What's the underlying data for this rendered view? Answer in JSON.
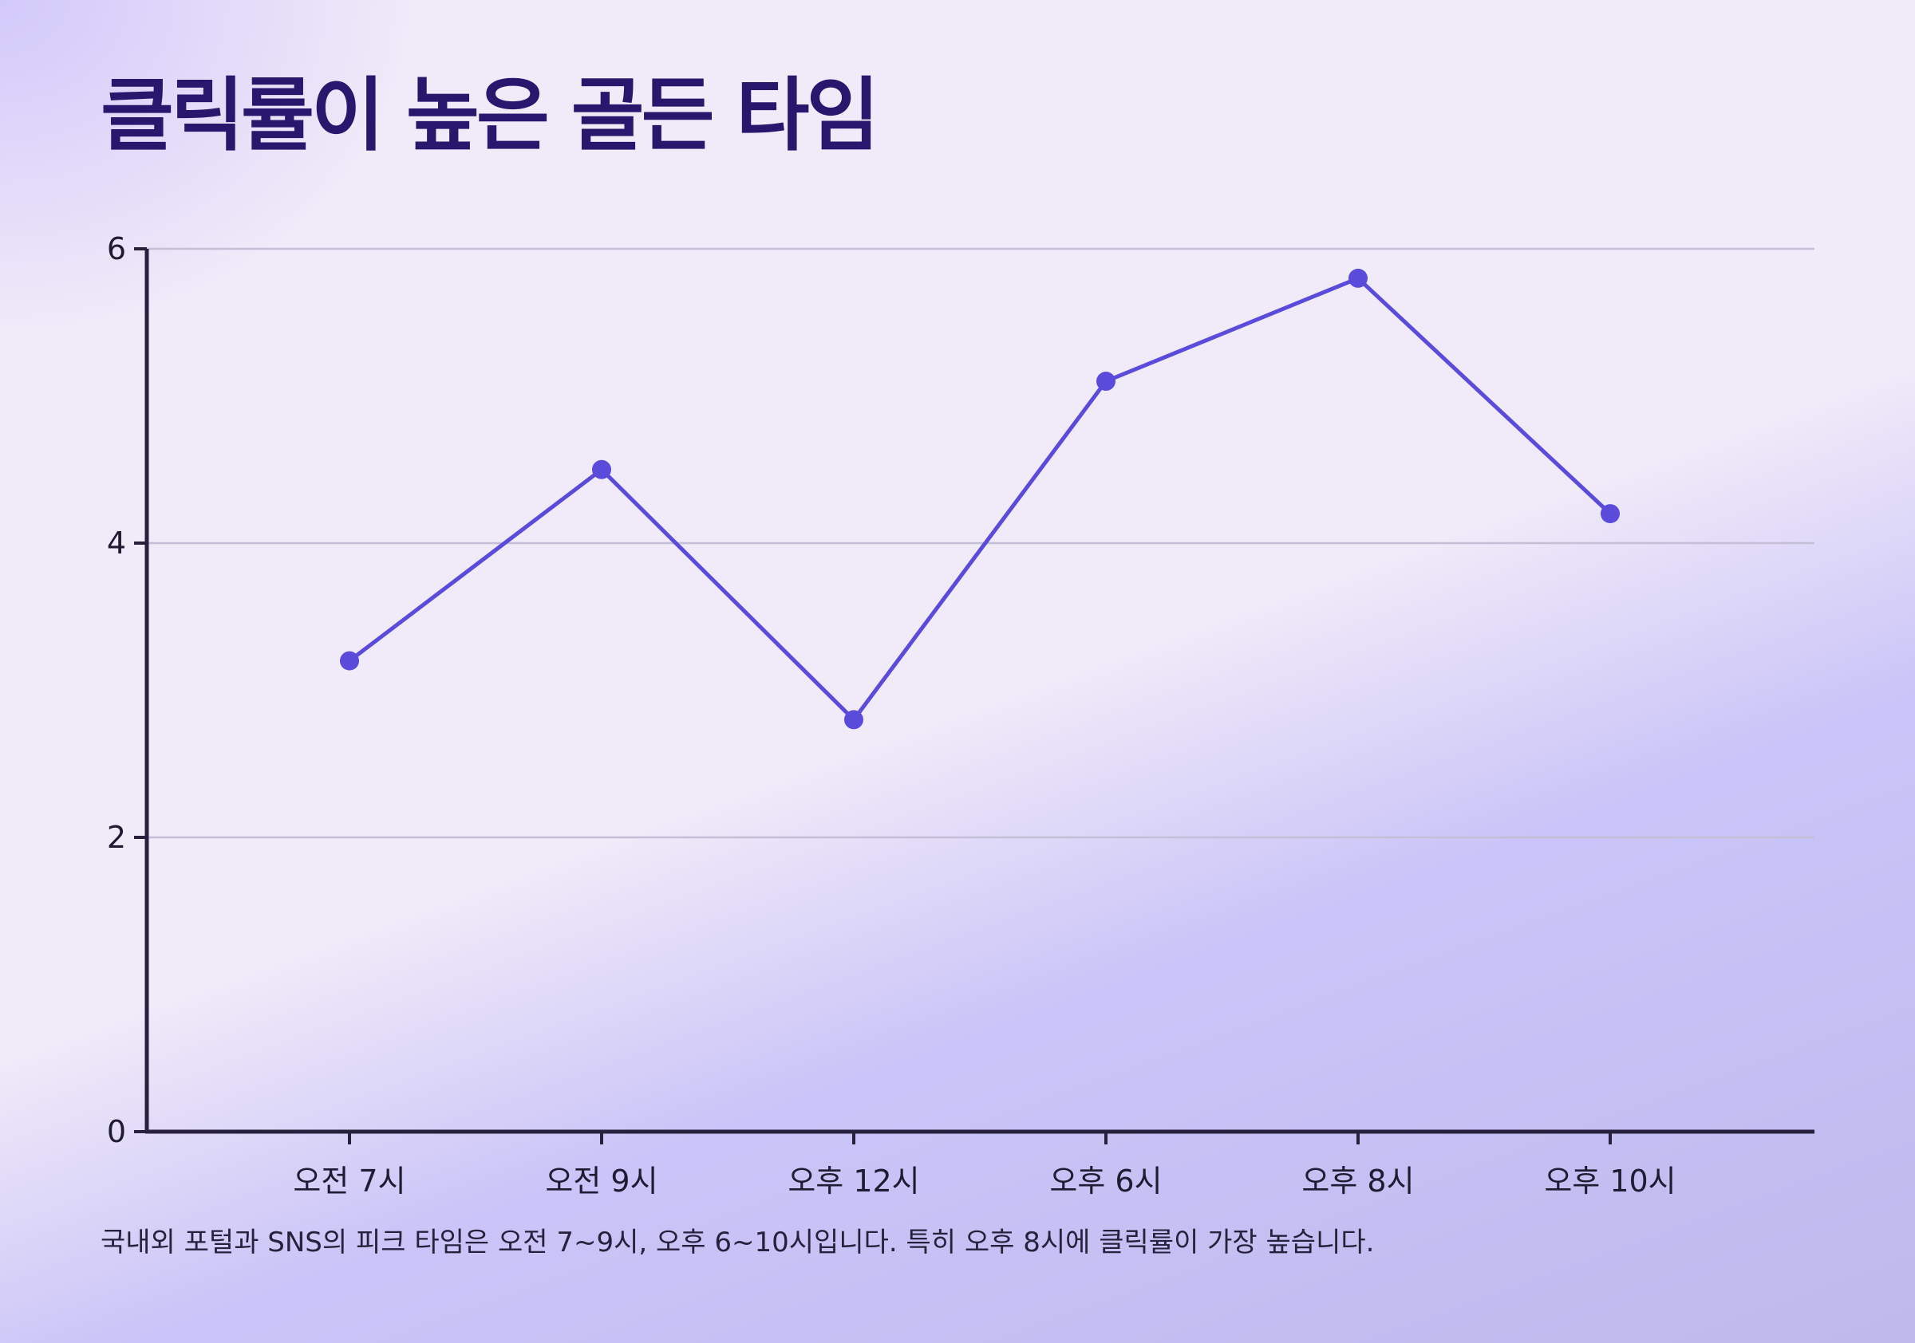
{
  "title": "클릭률이 높은 골든 타임",
  "caption": "국내외 포털과 SNS의 피크 타임은 오전 7~9시, 오후 6~10시입니다. 특히 오후 8시에 클릭률이 가장 높습니다.",
  "colors": {
    "title": "#27186e",
    "line": "#5b4bdb",
    "axis": "#27213d",
    "grid": "#c4bfd6"
  },
  "chart_data": {
    "type": "line",
    "title": "",
    "xlabel": "",
    "ylabel": "",
    "categories": [
      "오전 7시",
      "오전 9시",
      "오후 12시",
      "오후 6시",
      "오후 8시",
      "오후 10시"
    ],
    "series": [
      {
        "values": [
          3.2,
          4.5,
          2.8,
          5.1,
          5.8,
          4.2
        ]
      }
    ],
    "ylim": [
      0,
      6
    ],
    "yticks": [
      0,
      2,
      4,
      6
    ],
    "gridlines": [
      2,
      4,
      6
    ],
    "grid": true,
    "legend": false
  }
}
